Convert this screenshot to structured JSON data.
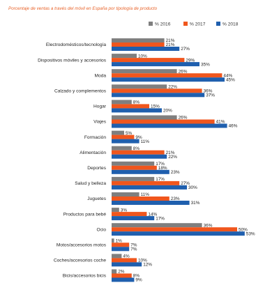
{
  "chart_data": {
    "type": "bar",
    "orientation": "horizontal",
    "title": "Porcentaje de ventas a través del móvil en España por tipología de producto",
    "legend_position": "top-right",
    "grid": false,
    "xlim": [
      0,
      55
    ],
    "value_suffix": "%",
    "categories": [
      "Electrodomésticos/tecnología",
      "Dispositivos móviles y accesorios",
      "Moda",
      "Calzado y complementos",
      "Hogar",
      "Viajes",
      "Formación",
      "Alimentación",
      "Deportes",
      "Salud y belleza",
      "Juguetes",
      "Productos para bebé",
      "Ocio",
      "Motos/accesorios motos",
      "Coches/accesorios coche",
      "Bicis/accesorios bicis"
    ],
    "series": [
      {
        "name": "% 2016",
        "color": "#7f7f7f",
        "values": [
          21,
          10,
          26,
          22,
          8,
          26,
          5,
          8,
          17,
          17,
          11,
          3,
          36,
          1,
          4,
          2
        ]
      },
      {
        "name": "% 2017",
        "color": "#f0561d",
        "values": [
          21,
          29,
          44,
          36,
          15,
          41,
          9,
          21,
          18,
          27,
          23,
          14,
          50,
          7,
          10,
          8
        ]
      },
      {
        "name": "% 2018",
        "color": "#1f5fae",
        "values": [
          27,
          35,
          45,
          37,
          20,
          46,
          11,
          22,
          23,
          30,
          31,
          17,
          53,
          7,
          12,
          9
        ]
      }
    ]
  }
}
